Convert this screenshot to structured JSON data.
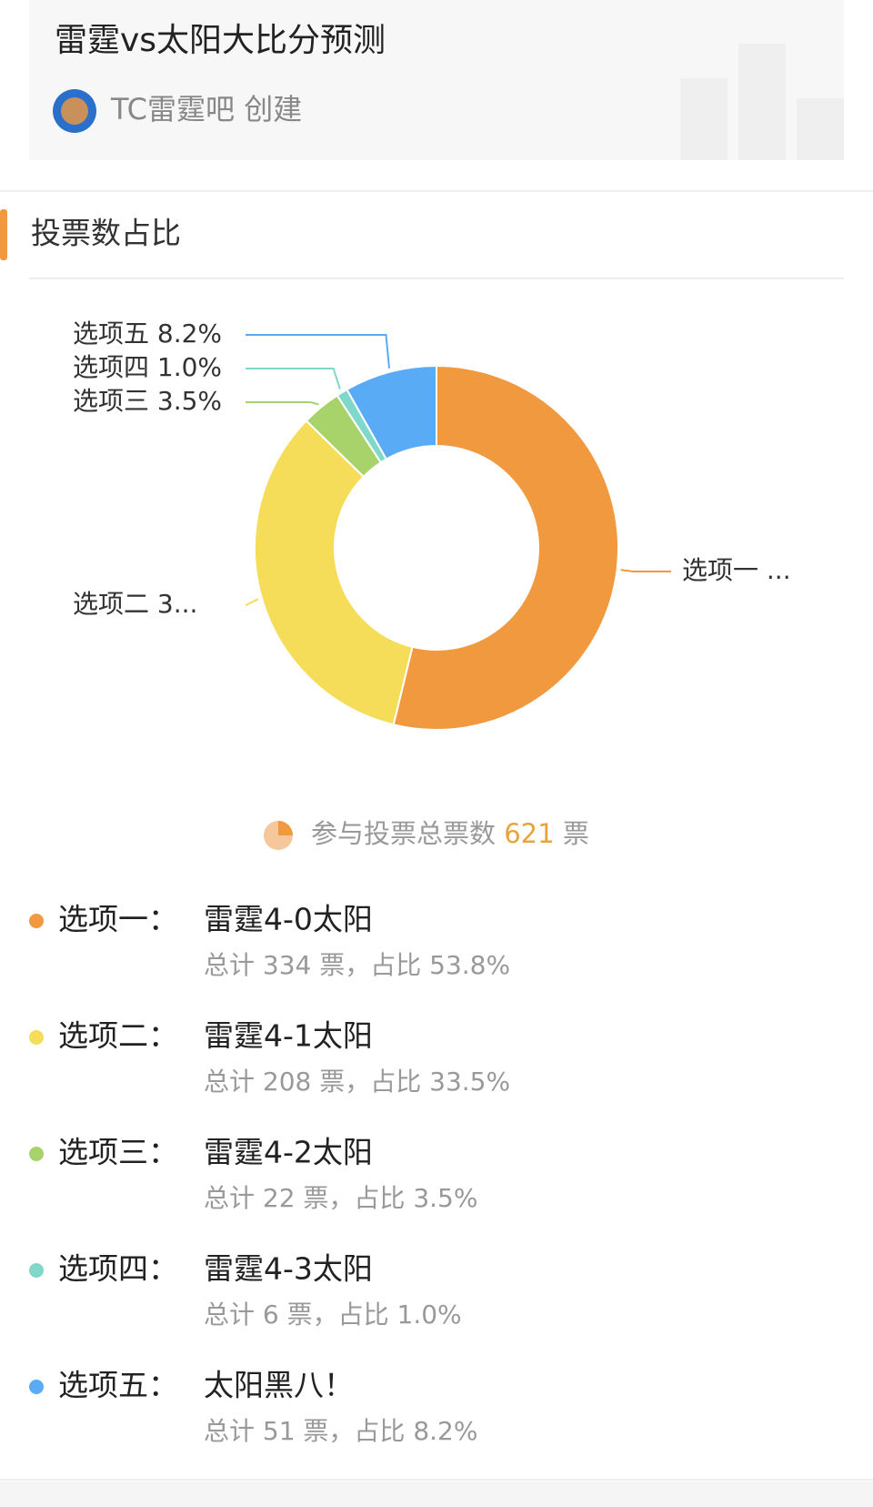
{
  "header": {
    "title": "雷霆vs太阳大比分预测",
    "creator": "TC雷霆吧 创建"
  },
  "section_title": "投票数占比",
  "chart_data": {
    "type": "pie",
    "donut": true,
    "categories": [
      "选项一 ...",
      "选项二 3...",
      "选项三 3.5%",
      "选项四 1.0%",
      "选项五 8.2%"
    ],
    "values": [
      53.8,
      33.5,
      3.5,
      1.0,
      8.2
    ],
    "colors": [
      "#f0993f",
      "#f5dd5a",
      "#a8d26a",
      "#7fd8c9",
      "#5aabf5"
    ]
  },
  "total": {
    "prefix": "参与投票总票数",
    "count": 621,
    "unit": "票"
  },
  "options": [
    {
      "label": "选项一：",
      "text": "雷霆4-0太阳",
      "detail": "总计 334 票，占比 53.8%"
    },
    {
      "label": "选项二：",
      "text": "雷霆4-1太阳",
      "detail": "总计 208 票，占比 33.5%"
    },
    {
      "label": "选项三：",
      "text": "雷霆4-2太阳",
      "detail": "总计 22 票，占比 3.5%"
    },
    {
      "label": "选项四：",
      "text": "雷霆4-3太阳",
      "detail": "总计 6 票，占比 1.0%"
    },
    {
      "label": "选项五：",
      "text": "太阳黑八！",
      "detail": "总计 51 票，占比 8.2%"
    }
  ]
}
